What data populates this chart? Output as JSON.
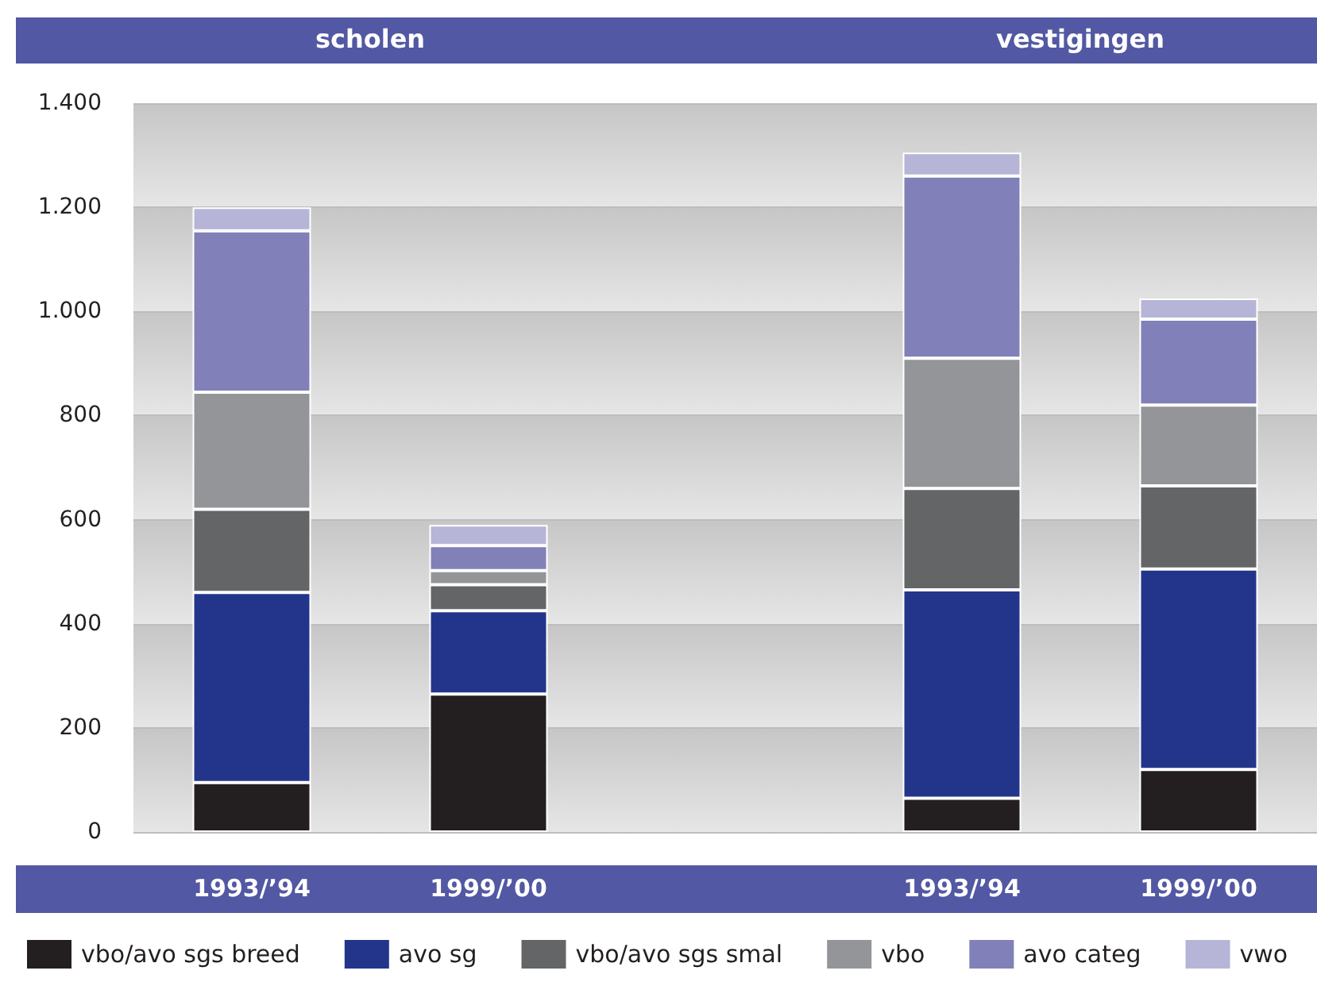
{
  "chart_data": {
    "type": "bar",
    "stacked": true,
    "annotations": [
      "scholen",
      "vestigingen"
    ],
    "categories": [
      "1993/’94",
      "1999/’00",
      null,
      "1993/’94",
      "1999/’00"
    ],
    "series": [
      {
        "name": "vbo/avo sgs breed",
        "color": "#231f20",
        "values": [
          95,
          265,
          null,
          65,
          120
        ]
      },
      {
        "name": "avo sg",
        "color": "#23358b",
        "values": [
          365,
          160,
          null,
          400,
          385
        ]
      },
      {
        "name": "vbo/avo sgs smal",
        "color": "#646567",
        "values": [
          160,
          50,
          null,
          195,
          160
        ]
      },
      {
        "name": "vbo",
        "color": "#939598",
        "values": [
          225,
          27,
          null,
          250,
          155
        ]
      },
      {
        "name": "avo categ",
        "color": "#8180b8",
        "values": [
          310,
          48,
          null,
          350,
          165
        ]
      },
      {
        "name": "vwo",
        "color": "#b6b5d8",
        "values": [
          45,
          40,
          null,
          45,
          40
        ]
      }
    ],
    "ylim": [
      0,
      1400
    ],
    "yticks": [
      0,
      200,
      400,
      600,
      800,
      {
        "value": 1000,
        "label": "1.000"
      },
      {
        "value": 1200,
        "label": "1.200"
      },
      {
        "value": 1400,
        "label": "1.400"
      }
    ],
    "grid": "y",
    "legend": "bottom"
  }
}
